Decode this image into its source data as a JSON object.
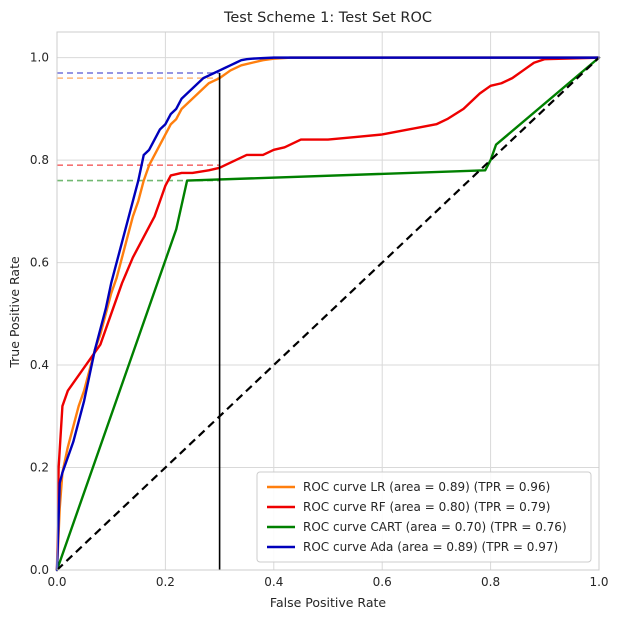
{
  "chart_data": {
    "type": "line",
    "title": "Test Scheme 1: Test Set ROC",
    "xlabel": "False Positive Rate",
    "ylabel": "True Positive Rate",
    "xlim": [
      0.0,
      1.0
    ],
    "ylim": [
      0.0,
      1.05
    ],
    "x_ticks": [
      0.0,
      0.2,
      0.4,
      0.6,
      0.8,
      1.0
    ],
    "y_ticks": [
      0.0,
      0.2,
      0.4,
      0.6,
      0.8,
      1.0
    ],
    "x_tick_labels": [
      "0.0",
      "0.2",
      "0.4",
      "0.6",
      "0.8",
      "1.0"
    ],
    "y_tick_labels": [
      "0.0",
      "0.2",
      "0.4",
      "0.6",
      "0.8",
      "1.0"
    ],
    "grid": true,
    "legend_position": "lower-right",
    "colors": {
      "LR": "#ff7f0e",
      "RF": "#ee0000",
      "CART": "#008000",
      "Ada": "#0000bb",
      "diagonal": "#000000",
      "threshold": "#000000"
    },
    "threshold_fpr": 0.3,
    "series": [
      {
        "key": "LR",
        "name": "ROC curve LR (area = 0.89) (TPR = 0.96)",
        "color": "#ff7f0e",
        "tpr_at_threshold": 0.96,
        "x": [
          0,
          0.005,
          0.01,
          0.02,
          0.03,
          0.04,
          0.05,
          0.06,
          0.07,
          0.08,
          0.09,
          0.1,
          0.11,
          0.12,
          0.13,
          0.14,
          0.15,
          0.16,
          0.17,
          0.18,
          0.19,
          0.2,
          0.21,
          0.22,
          0.23,
          0.24,
          0.25,
          0.26,
          0.27,
          0.28,
          0.29,
          0.3,
          0.32,
          0.34,
          0.36,
          0.38,
          0.4,
          0.43,
          0.5,
          0.6,
          0.7,
          0.8,
          0.9,
          1.0
        ],
        "y": [
          0,
          0.12,
          0.19,
          0.24,
          0.28,
          0.32,
          0.35,
          0.39,
          0.43,
          0.46,
          0.5,
          0.54,
          0.57,
          0.61,
          0.65,
          0.69,
          0.72,
          0.76,
          0.79,
          0.81,
          0.83,
          0.85,
          0.87,
          0.88,
          0.9,
          0.91,
          0.92,
          0.93,
          0.94,
          0.95,
          0.955,
          0.96,
          0.975,
          0.985,
          0.99,
          0.995,
          0.998,
          1.0,
          1.0,
          1.0,
          1.0,
          1.0,
          1.0,
          1.0
        ]
      },
      {
        "key": "RF",
        "name": "ROC curve RF (area = 0.80) (TPR = 0.79)",
        "color": "#ee0000",
        "tpr_at_threshold": 0.79,
        "x": [
          0,
          0.003,
          0.01,
          0.02,
          0.04,
          0.06,
          0.08,
          0.1,
          0.12,
          0.14,
          0.16,
          0.18,
          0.19,
          0.2,
          0.21,
          0.23,
          0.25,
          0.28,
          0.3,
          0.31,
          0.33,
          0.35,
          0.38,
          0.4,
          0.42,
          0.45,
          0.5,
          0.55,
          0.6,
          0.65,
          0.7,
          0.72,
          0.75,
          0.78,
          0.8,
          0.82,
          0.84,
          0.86,
          0.88,
          0.9,
          1.0
        ],
        "y": [
          0,
          0.2,
          0.32,
          0.35,
          0.38,
          0.41,
          0.44,
          0.5,
          0.56,
          0.61,
          0.65,
          0.69,
          0.72,
          0.75,
          0.77,
          0.775,
          0.775,
          0.78,
          0.785,
          0.79,
          0.8,
          0.81,
          0.81,
          0.82,
          0.825,
          0.84,
          0.84,
          0.845,
          0.85,
          0.86,
          0.87,
          0.88,
          0.9,
          0.93,
          0.945,
          0.95,
          0.96,
          0.975,
          0.99,
          0.997,
          1.0
        ]
      },
      {
        "key": "CART",
        "name": "ROC curve CART (area = 0.70) (TPR = 0.76)",
        "color": "#008000",
        "tpr_at_threshold": 0.76,
        "x": [
          0,
          0.22,
          0.24,
          0.79,
          0.8,
          0.81,
          1.0
        ],
        "y": [
          0,
          0.665,
          0.76,
          0.78,
          0.8,
          0.83,
          1.0
        ]
      },
      {
        "key": "Ada",
        "name": "ROC curve Ada (area = 0.89) (TPR = 0.97)",
        "color": "#0000bb",
        "tpr_at_threshold": 0.97,
        "x": [
          0,
          0.005,
          0.01,
          0.02,
          0.03,
          0.04,
          0.05,
          0.06,
          0.07,
          0.08,
          0.09,
          0.1,
          0.11,
          0.12,
          0.13,
          0.14,
          0.15,
          0.16,
          0.17,
          0.18,
          0.19,
          0.2,
          0.21,
          0.22,
          0.23,
          0.24,
          0.25,
          0.26,
          0.27,
          0.28,
          0.29,
          0.3,
          0.31,
          0.32,
          0.33,
          0.34,
          0.35,
          0.36,
          0.38,
          0.4,
          0.42,
          0.5,
          0.6,
          0.7,
          0.8,
          0.9,
          1.0
        ],
        "y": [
          0,
          0.17,
          0.19,
          0.22,
          0.25,
          0.29,
          0.33,
          0.38,
          0.43,
          0.47,
          0.51,
          0.56,
          0.6,
          0.64,
          0.68,
          0.72,
          0.76,
          0.81,
          0.82,
          0.84,
          0.86,
          0.87,
          0.89,
          0.9,
          0.92,
          0.93,
          0.94,
          0.95,
          0.96,
          0.965,
          0.97,
          0.975,
          0.98,
          0.985,
          0.99,
          0.995,
          0.997,
          0.998,
          0.999,
          1.0,
          1.0,
          1.0,
          1.0,
          1.0,
          1.0,
          1.0,
          1.0
        ]
      }
    ],
    "diagonal": {
      "x": [
        0,
        1
      ],
      "y": [
        0,
        1
      ]
    }
  }
}
